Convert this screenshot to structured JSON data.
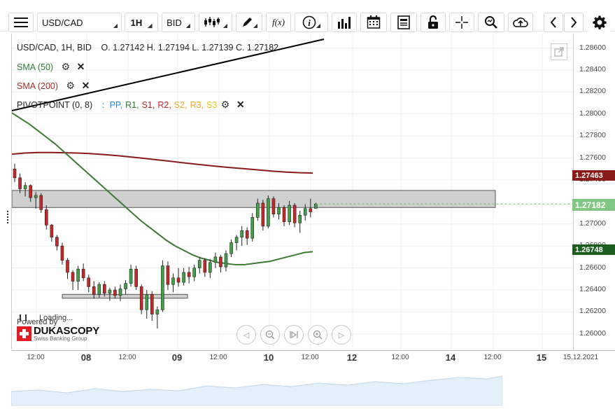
{
  "toolbar": {
    "symbol": "USD/CAD",
    "timeframe": "1H",
    "price_side": "BID",
    "fx_label": "f(x)"
  },
  "legend": {
    "instrument": "USD/CAD, 1H, BID",
    "ohlc": "O. 1.27142 H. 1.27194 L. 1.27139 C. 1.27182",
    "sma50": "SMA (50)",
    "sma200": "SMA (200)",
    "pivot": "PIVOTPOINT (0, 8)",
    "pivot_sep": ":",
    "pivot_levels": [
      {
        "label": "PP,",
        "color": "#1e88e5"
      },
      {
        "label": "R1,",
        "color": "#2e7d32"
      },
      {
        "label": "S1,",
        "color": "#c62828"
      },
      {
        "label": "R2,",
        "color": "#c62828"
      },
      {
        "label": "S2,",
        "color": "#f9a825"
      },
      {
        "label": "R3,",
        "color": "#f9a825"
      },
      {
        "label": "S3",
        "color": "#f1c40f"
      }
    ]
  },
  "price_labels": {
    "sma200": "1.27463",
    "last": "1.27182",
    "sma50": "1.26748"
  },
  "branding": {
    "loading": "Loading...",
    "powered": "Powered by",
    "name": "DUKASCOPY",
    "tagline": "Swiss Banking Group"
  },
  "chart_data": {
    "type": "candlestick",
    "yticks": [
      "1.28600",
      "1.28400",
      "1.28200",
      "1.28000",
      "1.27800",
      "1.27600",
      "1.27400",
      "1.27000",
      "1.26800",
      "1.26600",
      "1.26400",
      "1.26200",
      "1.26000"
    ],
    "xticks": [
      {
        "label": "12:00",
        "major": false
      },
      {
        "label": "08",
        "major": true
      },
      {
        "label": "12:00",
        "major": false
      },
      {
        "label": "09",
        "major": true
      },
      {
        "label": "12:00",
        "major": false
      },
      {
        "label": "10",
        "major": true
      },
      {
        "label": "12:00",
        "major": false
      },
      {
        "label": "12",
        "major": true
      },
      {
        "label": "12:00",
        "major": false
      },
      {
        "label": "14",
        "major": true
      },
      {
        "label": "12:00",
        "major": false
      },
      {
        "label": "15",
        "major": true
      },
      {
        "label": "15.12.2021",
        "major": false
      }
    ],
    "ylim": [
      1.2591,
      1.2868
    ],
    "last_close": 1.27182,
    "sma50_last": 1.26748,
    "sma200_last": 1.27463,
    "candles": [
      [
        1.275,
        1.2755,
        1.2738,
        1.2742
      ],
      [
        1.2742,
        1.2746,
        1.2728,
        1.2732
      ],
      [
        1.2732,
        1.2738,
        1.2725,
        1.2735
      ],
      [
        1.2735,
        1.2736,
        1.272,
        1.2724
      ],
      [
        1.2724,
        1.2729,
        1.2714,
        1.2726
      ],
      [
        1.2726,
        1.2728,
        1.271,
        1.2713
      ],
      [
        1.2713,
        1.2717,
        1.2695,
        1.2699
      ],
      [
        1.2699,
        1.27,
        1.2684,
        1.2688
      ],
      [
        1.2688,
        1.269,
        1.2676,
        1.268
      ],
      [
        1.268,
        1.2683,
        1.2663,
        1.2667
      ],
      [
        1.2667,
        1.2669,
        1.265,
        1.2656
      ],
      [
        1.2656,
        1.2658,
        1.264,
        1.2648
      ],
      [
        1.2648,
        1.2662,
        1.264,
        1.2659
      ],
      [
        1.2659,
        1.2664,
        1.2648,
        1.2651
      ],
      [
        1.2651,
        1.2654,
        1.2638,
        1.2643
      ],
      [
        1.2643,
        1.2648,
        1.2632,
        1.2636
      ],
      [
        1.2636,
        1.2647,
        1.2633,
        1.2645
      ],
      [
        1.2645,
        1.2648,
        1.2634,
        1.2637
      ],
      [
        1.2637,
        1.2642,
        1.263,
        1.264
      ],
      [
        1.264,
        1.2643,
        1.2632,
        1.2635
      ],
      [
        1.2635,
        1.2645,
        1.263,
        1.2641
      ],
      [
        1.2641,
        1.2649,
        1.2636,
        1.2646
      ],
      [
        1.2646,
        1.2663,
        1.2643,
        1.2659
      ],
      [
        1.2659,
        1.2662,
        1.264,
        1.2643
      ],
      [
        1.2643,
        1.2645,
        1.2618,
        1.2622
      ],
      [
        1.2622,
        1.264,
        1.2614,
        1.2636
      ],
      [
        1.2636,
        1.2639,
        1.2612,
        1.2618
      ],
      [
        1.2618,
        1.2625,
        1.2605,
        1.2622
      ],
      [
        1.2622,
        1.2667,
        1.262,
        1.2662
      ],
      [
        1.2662,
        1.2666,
        1.264,
        1.2645
      ],
      [
        1.2645,
        1.2655,
        1.2638,
        1.2651
      ],
      [
        1.2651,
        1.266,
        1.2643,
        1.2647
      ],
      [
        1.2647,
        1.266,
        1.2644,
        1.2656
      ],
      [
        1.2656,
        1.2661,
        1.2646,
        1.2652
      ],
      [
        1.2652,
        1.2663,
        1.2648,
        1.266
      ],
      [
        1.266,
        1.267,
        1.2655,
        1.2667
      ],
      [
        1.2667,
        1.2669,
        1.2652,
        1.2656
      ],
      [
        1.2656,
        1.2668,
        1.2651,
        1.2665
      ],
      [
        1.2665,
        1.2674,
        1.266,
        1.267
      ],
      [
        1.267,
        1.2672,
        1.2656,
        1.2661
      ],
      [
        1.2661,
        1.2676,
        1.2657,
        1.2673
      ],
      [
        1.2673,
        1.2686,
        1.267,
        1.2683
      ],
      [
        1.2683,
        1.269,
        1.2676,
        1.2688
      ],
      [
        1.2688,
        1.2698,
        1.268,
        1.2694
      ],
      [
        1.2694,
        1.2697,
        1.2681,
        1.2687
      ],
      [
        1.2687,
        1.271,
        1.2684,
        1.2706
      ],
      [
        1.2706,
        1.2723,
        1.2703,
        1.2719
      ],
      [
        1.2719,
        1.2722,
        1.2694,
        1.2698
      ],
      [
        1.2698,
        1.2726,
        1.2696,
        1.2723
      ],
      [
        1.2723,
        1.2725,
        1.2706,
        1.2709
      ],
      [
        1.2709,
        1.2719,
        1.2704,
        1.2715
      ],
      [
        1.2715,
        1.2717,
        1.2698,
        1.2702
      ],
      [
        1.2702,
        1.2721,
        1.2699,
        1.2717
      ],
      [
        1.2717,
        1.2719,
        1.2697,
        1.2701
      ],
      [
        1.2701,
        1.2712,
        1.2692,
        1.2708
      ],
      [
        1.2708,
        1.2718,
        1.2703,
        1.2714
      ],
      [
        1.2714,
        1.2723,
        1.2706,
        1.2711
      ],
      [
        1.27142,
        1.27194,
        1.27139,
        1.27182
      ]
    ],
    "sma50": [
      1.2801,
      1.2796,
      1.2791,
      1.2785,
      1.2779,
      1.2773,
      1.2766,
      1.2759,
      1.2752,
      1.2745,
      1.2738,
      1.2731,
      1.2724,
      1.2717,
      1.271,
      1.2703,
      1.2697,
      1.2691,
      1.2685,
      1.268,
      1.2676,
      1.2672,
      1.2669,
      1.2667,
      1.2665,
      1.2664,
      1.2663,
      1.2663,
      1.2664,
      1.2665,
      1.2666,
      1.2668,
      1.267,
      1.2672,
      1.2674,
      1.26748
    ],
    "sma200": [
      1.27635,
      1.27645,
      1.2765,
      1.2765,
      1.27648,
      1.27645,
      1.2764,
      1.27632,
      1.27622,
      1.2761,
      1.27598,
      1.27585,
      1.27572,
      1.27558,
      1.27545,
      1.27532,
      1.2752,
      1.2751,
      1.275,
      1.2749,
      1.2748,
      1.27472,
      1.27466,
      1.27463
    ],
    "pivot_zones": [
      {
        "low": 1.2715,
        "high": 1.27305
      },
      {
        "low": 1.26325,
        "high": 1.2636
      }
    ],
    "trendline": [
      [
        1.2803,
        0
      ],
      [
        1.2868,
        1
      ]
    ]
  }
}
